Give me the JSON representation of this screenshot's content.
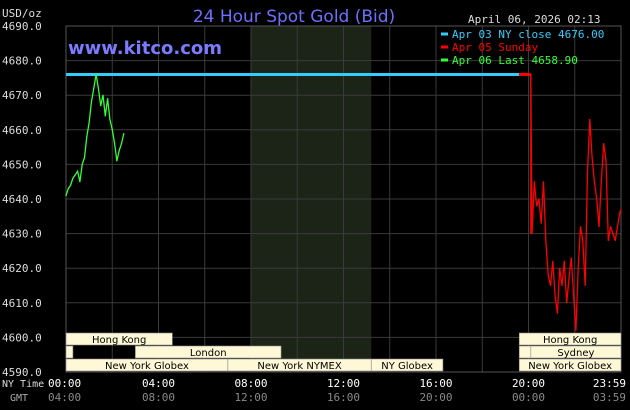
{
  "header": {
    "unit": "USD/oz",
    "title": "24 Hour Spot Gold (Bid)",
    "timestamp": "April 06, 2026 02:13",
    "brand": "www.kitco.com"
  },
  "legend": [
    {
      "label": "Apr 03 NY close 4676.00",
      "color": "#33ccff"
    },
    {
      "label": "Apr 05 Sunday",
      "color": "#ff0000"
    },
    {
      "label": "Apr 06 Last 4658.90",
      "color": "#33ff33"
    }
  ],
  "axis": {
    "y_ticks": [
      "4690.0",
      "4680.0",
      "4670.0",
      "4660.0",
      "4650.0",
      "4640.0",
      "4630.0",
      "4620.0",
      "4610.0",
      "4600.0",
      "4590.0"
    ],
    "row_labels": [
      "NY Time",
      "GMT"
    ],
    "ny_ticks": [
      "00:00",
      "04:00",
      "08:00",
      "12:00",
      "16:00",
      "20:00",
      "23:59"
    ],
    "gmt_ticks": [
      "04:00",
      "08:00",
      "12:00",
      "16:00",
      "20:00",
      "00:00",
      "03:59"
    ]
  },
  "sessions": {
    "hong_kong": "Hong Kong",
    "london": "London",
    "ny_globex": "New York Globex",
    "ny_nymex": "New York NYMEX",
    "ny_globex_short": "NY Globex",
    "sydney": "Sydney"
  },
  "colors": {
    "background": "#000000",
    "grid": "#3a3a3a",
    "shaded_session": "#1c2418",
    "title": "#6f6fff",
    "brand": "#7b7bff",
    "label": "#dddddd",
    "session_fill": "#fff8d6",
    "session_text": "#000000",
    "close_line": "#33ccff",
    "sunday_line": "#ff0000",
    "today_line": "#33ff33"
  },
  "chart_data": {
    "type": "line",
    "title": "24 Hour Spot Gold (Bid)",
    "ylabel": "USD/oz",
    "ylim": [
      4590,
      4690
    ],
    "xlim_hours_ny": [
      0,
      24
    ],
    "series": [
      {
        "name": "Apr 03 NY close 4676.00",
        "type": "hline",
        "value": 4676.0,
        "x_start": 0.0,
        "x_end": 19.6
      },
      {
        "name": "Apr 05 Sunday",
        "type": "hline",
        "value": 4676.0,
        "x_start": 19.6,
        "x_end": 20.1
      },
      {
        "name": "Apr 05 Sunday",
        "x": [
          20.1,
          20.15,
          20.25,
          20.35,
          20.45,
          20.55,
          20.65,
          20.75,
          20.85,
          20.95,
          21.05,
          21.15,
          21.25,
          21.35,
          21.45,
          21.55,
          21.65,
          21.75,
          21.85,
          21.95,
          22.05,
          22.15,
          22.25,
          22.35,
          22.45,
          22.55,
          22.65,
          22.75,
          22.85,
          22.95,
          23.05,
          23.15,
          23.25,
          23.35,
          23.45,
          23.55,
          23.65,
          23.75,
          23.85,
          23.95,
          24.0
        ],
        "y": [
          4676,
          4630,
          4645,
          4638,
          4640,
          4633,
          4645,
          4628,
          4618,
          4615,
          4622,
          4612,
          4607,
          4620,
          4615,
          4622,
          4610,
          4617,
          4623,
          4612,
          4602,
          4620,
          4632,
          4628,
          4615,
          4648,
          4663,
          4652,
          4645,
          4640,
          4632,
          4645,
          4656,
          4651,
          4628,
          4632,
          4630,
          4628,
          4632,
          4636,
          4637
        ]
      },
      {
        "name": "Apr 06 Last 4658.90",
        "x": [
          0.0,
          0.1,
          0.2,
          0.3,
          0.4,
          0.5,
          0.6,
          0.7,
          0.8,
          0.9,
          1.0,
          1.1,
          1.2,
          1.3,
          1.4,
          1.5,
          1.6,
          1.7,
          1.8,
          1.9,
          2.0,
          2.1,
          2.2,
          2.3,
          2.4,
          2.5
        ],
        "y": [
          4641,
          4643,
          4644,
          4646,
          4647,
          4648,
          4645,
          4650,
          4652,
          4658,
          4662,
          4668,
          4672,
          4676,
          4672,
          4667,
          4670,
          4664,
          4669,
          4663,
          4660,
          4656,
          4651,
          4654,
          4656,
          4658.9
        ]
      }
    ]
  }
}
